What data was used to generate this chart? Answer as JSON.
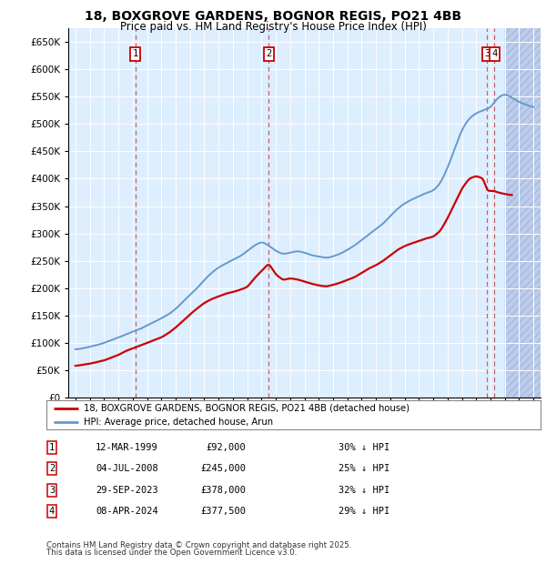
{
  "title1": "18, BOXGROVE GARDENS, BOGNOR REGIS, PO21 4BB",
  "title2": "Price paid vs. HM Land Registry's House Price Index (HPI)",
  "transactions": [
    {
      "num": 1,
      "date_str": "12-MAR-1999",
      "price": 92000,
      "pct": "30%",
      "x_year": 1999.19
    },
    {
      "num": 2,
      "date_str": "04-JUL-2008",
      "price": 245000,
      "pct": "25%",
      "x_year": 2008.5
    },
    {
      "num": 3,
      "date_str": "29-SEP-2023",
      "price": 378000,
      "pct": "32%",
      "x_year": 2023.75
    },
    {
      "num": 4,
      "date_str": "08-APR-2024",
      "price": 377500,
      "pct": "29%",
      "x_year": 2024.27
    }
  ],
  "legend_line1": "18, BOXGROVE GARDENS, BOGNOR REGIS, PO21 4BB (detached house)",
  "legend_line2": "HPI: Average price, detached house, Arun",
  "footer1": "Contains HM Land Registry data © Crown copyright and database right 2025.",
  "footer2": "This data is licensed under the Open Government Licence v3.0.",
  "color_red": "#cc0000",
  "color_blue": "#6699cc",
  "color_bg": "#ddeeff",
  "color_hatch_bg": "#bbccee",
  "xlim_min": 1994.5,
  "xlim_max": 2027.5,
  "ylim_min": 0,
  "ylim_max": 675000,
  "hpi_years": [
    1995,
    1995.5,
    1996,
    1996.5,
    1997,
    1997.5,
    1998,
    1998.5,
    1999,
    1999.5,
    2000,
    2000.5,
    2001,
    2001.5,
    2002,
    2002.5,
    2003,
    2003.5,
    2004,
    2004.5,
    2005,
    2005.5,
    2006,
    2006.5,
    2007,
    2007.5,
    2008,
    2008.5,
    2009,
    2009.5,
    2010,
    2010.5,
    2011,
    2011.5,
    2012,
    2012.5,
    2013,
    2013.5,
    2014,
    2014.5,
    2015,
    2015.5,
    2016,
    2016.5,
    2017,
    2017.5,
    2018,
    2018.5,
    2019,
    2019.5,
    2020,
    2020.5,
    2021,
    2021.5,
    2022,
    2022.5,
    2023,
    2023.5,
    2024,
    2024.5,
    2025,
    2025.5,
    2026,
    2026.5,
    2027
  ],
  "hpi_values": [
    88000,
    90000,
    93000,
    96000,
    100000,
    105000,
    110000,
    115000,
    121000,
    125000,
    132000,
    138000,
    145000,
    152000,
    162000,
    175000,
    188000,
    200000,
    215000,
    228000,
    238000,
    245000,
    252000,
    258000,
    268000,
    278000,
    285000,
    278000,
    268000,
    262000,
    265000,
    268000,
    265000,
    260000,
    258000,
    255000,
    258000,
    263000,
    270000,
    278000,
    288000,
    298000,
    308000,
    318000,
    332000,
    345000,
    355000,
    362000,
    368000,
    374000,
    378000,
    392000,
    420000,
    455000,
    490000,
    510000,
    520000,
    525000,
    530000,
    548000,
    555000,
    548000,
    540000,
    535000,
    530000
  ],
  "pp_years": [
    1995,
    1995.5,
    1996,
    1996.5,
    1997,
    1997.5,
    1998,
    1998.5,
    1999.19,
    1999.5,
    2000,
    2000.5,
    2001,
    2001.5,
    2002,
    2002.5,
    2003,
    2003.5,
    2004,
    2004.5,
    2005,
    2005.5,
    2006,
    2006.5,
    2007,
    2007.5,
    2008.5,
    2009,
    2009.5,
    2010,
    2010.5,
    2011,
    2011.5,
    2012,
    2012.5,
    2013,
    2013.5,
    2014,
    2014.5,
    2015,
    2015.5,
    2016,
    2016.5,
    2017,
    2017.5,
    2018,
    2018.5,
    2019,
    2019.5,
    2020,
    2020.5,
    2021,
    2021.5,
    2022,
    2022.5,
    2023,
    2023.5,
    2023.75,
    2024.27,
    2024.5,
    2025,
    2025.5
  ],
  "pp_values": [
    58000,
    60000,
    62000,
    65000,
    68000,
    73000,
    78000,
    85000,
    92000,
    95000,
    100000,
    105000,
    110000,
    118000,
    128000,
    140000,
    152000,
    163000,
    173000,
    180000,
    185000,
    190000,
    193000,
    197000,
    202000,
    218000,
    245000,
    225000,
    215000,
    218000,
    216000,
    212000,
    208000,
    205000,
    203000,
    206000,
    210000,
    215000,
    220000,
    228000,
    236000,
    242000,
    250000,
    260000,
    270000,
    277000,
    282000,
    286000,
    291000,
    294000,
    305000,
    328000,
    355000,
    382000,
    400000,
    405000,
    400000,
    378000,
    377500,
    375000,
    372000,
    370000
  ]
}
